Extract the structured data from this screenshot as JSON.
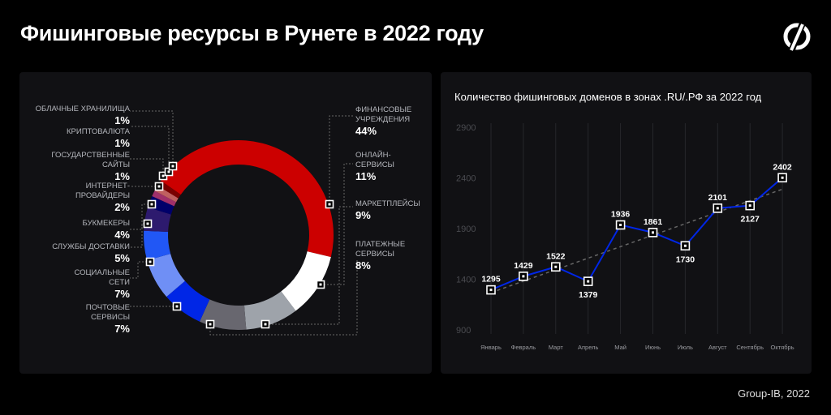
{
  "title": "Фишинговые ресурсы в Рунете в 2022 году",
  "footer": "Group-IB, 2022",
  "logo": "Group-IB",
  "chart_data": [
    {
      "type": "pie",
      "donut": true,
      "categories": [
        "ФИНАНСОВЫЕ УЧРЕЖДЕНИЯ",
        "ОНЛАЙН-СЕРВИСЫ",
        "МАРКЕТПЛЕЙСЫ",
        "ПЛАТЕЖНЫЕ СЕРВИСЫ",
        "ПОЧТОВЫЕ СЕРВИСЫ",
        "СОЦИАЛЬНЫЕ СЕТИ",
        "СЛУЖБЫ ДОСТАВКИ",
        "БУКМЕКЕРЫ",
        "ИНТЕРНЕТ-ПРОВАЙДЕРЫ",
        "ГОСУДАРСТВЕННЫЕ САЙТЫ",
        "КРИПТОВАЛЮТА",
        "ОБЛАЧНЫЕ ХРАНИЛИЩА"
      ],
      "values": [
        44,
        11,
        9,
        8,
        7,
        7,
        5,
        4,
        2,
        1,
        1,
        1
      ],
      "labels": [
        "44%",
        "11%",
        "9%",
        "8%",
        "7%",
        "7%",
        "5%",
        "4%",
        "2%",
        "1%",
        "1%",
        "1%"
      ],
      "colors": [
        "#cc0000",
        "#ffffff",
        "#9ea3aa",
        "#68676f",
        "#0026e6",
        "#6f8ff5",
        "#2157f5",
        "#2d1a6e",
        "#00006a",
        "#a0306a",
        "#c06060",
        "#7a0000"
      ]
    },
    {
      "type": "line",
      "title": "Количество фишинговых доменов в зонах .RU/.РФ за 2022 год",
      "categories": [
        "Январь",
        "Февраль",
        "Март",
        "Апрель",
        "Май",
        "Июнь",
        "Июль",
        "Август",
        "Сентябрь",
        "Октябрь"
      ],
      "values": [
        1295,
        1429,
        1522,
        1379,
        1936,
        1861,
        1730,
        2101,
        2127,
        2402
      ],
      "ylim": [
        900,
        2900
      ],
      "yticks": [
        "900",
        "1400",
        "1900",
        "2400",
        "2900"
      ],
      "trendline": true,
      "line_color": "#0026e6",
      "grid": "vertical"
    }
  ]
}
